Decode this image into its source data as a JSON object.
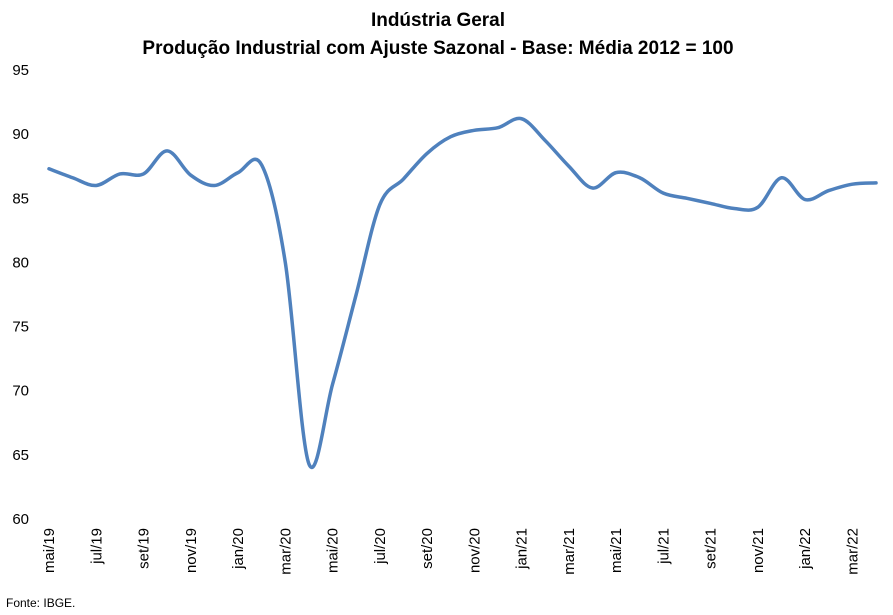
{
  "chart_data": {
    "type": "line",
    "title_lines": [
      "Indústria Geral",
      "Produção Industrial com Ajuste Sazonal - Base: Média 2012 = 100"
    ],
    "xlabel": "",
    "ylabel": "",
    "ylim": [
      60,
      95
    ],
    "y_ticks": [
      60,
      65,
      70,
      75,
      80,
      85,
      90,
      95
    ],
    "grid": false,
    "legend": "none",
    "line_color": "#4F81BD",
    "x": [
      "mai/19",
      "jun/19",
      "jul/19",
      "ago/19",
      "set/19",
      "out/19",
      "nov/19",
      "dez/19",
      "jan/20",
      "fev/20",
      "mar/20",
      "abr/20",
      "mai/20",
      "jun/20",
      "jul/20",
      "ago/20",
      "set/20",
      "out/20",
      "nov/20",
      "dez/20",
      "jan/21",
      "fev/21",
      "mar/21",
      "abr/21",
      "mai/21",
      "jun/21",
      "jul/21",
      "ago/21",
      "set/21",
      "out/21",
      "nov/21",
      "dez/21",
      "jan/22",
      "fev/22",
      "mar/22",
      "abr/22"
    ],
    "x_tick_labels": [
      "mai/19",
      "jul/19",
      "set/19",
      "nov/19",
      "jan/20",
      "mar/20",
      "mai/20",
      "jul/20",
      "set/20",
      "nov/20",
      "jan/21",
      "mar/21",
      "mai/21",
      "jul/21",
      "set/21",
      "nov/21",
      "jan/22",
      "mar/22"
    ],
    "values": [
      87.3,
      86.6,
      86.0,
      86.9,
      86.9,
      88.7,
      86.8,
      86.0,
      87.0,
      87.6,
      80.0,
      64.3,
      70.5,
      77.5,
      84.5,
      86.5,
      88.5,
      89.8,
      90.3,
      90.5,
      91.2,
      89.5,
      87.5,
      85.8,
      87.0,
      86.6,
      85.4,
      85.0,
      84.6,
      84.2,
      84.3,
      86.6,
      84.9,
      85.6,
      86.1,
      86.2
    ]
  },
  "source": "Fonte: IBGE."
}
